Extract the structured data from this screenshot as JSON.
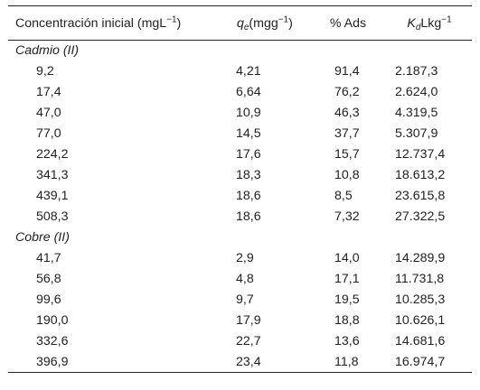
{
  "table": {
    "headers": {
      "conc_prefix": "Concentración inicial (mgL",
      "conc_sup": "−1",
      "conc_suffix": ")",
      "qe_symbol": "q",
      "qe_sub": "e",
      "qe_unit": "(mgg",
      "qe_sup": "−1",
      "qe_suffix": ")",
      "ads": "% Ads",
      "kd_symbol": "K",
      "kd_sub": "d",
      "kd_unit": "Lkg",
      "kd_sup": "−1"
    },
    "groups": [
      {
        "label": "Cadmio (II)",
        "rows": [
          [
            "9,2",
            "4,21",
            "91,4",
            "2.187,3"
          ],
          [
            "17,4",
            "6,64",
            "76,2",
            "2.624,0"
          ],
          [
            "47,0",
            "10,9",
            "46,3",
            "4.319,5"
          ],
          [
            "77,0",
            "14,5",
            "37,7",
            "5.307,9"
          ],
          [
            "224,2",
            "17,6",
            "15,7",
            "12.737,4"
          ],
          [
            "341,3",
            "18,3",
            "10,8",
            "18.613,2"
          ],
          [
            "439,1",
            "18,6",
            "8,5",
            "23.615,8"
          ],
          [
            "508,3",
            "18,6",
            "7,32",
            "27.322,5"
          ]
        ]
      },
      {
        "label": "Cobre (II)",
        "rows": [
          [
            "41,7",
            "2,9",
            "14,0",
            "14.289,9"
          ],
          [
            "56,8",
            "4,8",
            "17,1",
            "11.731,8"
          ],
          [
            "99,6",
            "9,7",
            "19,5",
            "10.285,3"
          ],
          [
            "190,0",
            "17,9",
            "18,8",
            "10.626,1"
          ],
          [
            "332,6",
            "22,7",
            "13,6",
            "14.681,6"
          ],
          [
            "396,9",
            "23,4",
            "11,8",
            "16.974,7"
          ]
        ]
      }
    ]
  }
}
